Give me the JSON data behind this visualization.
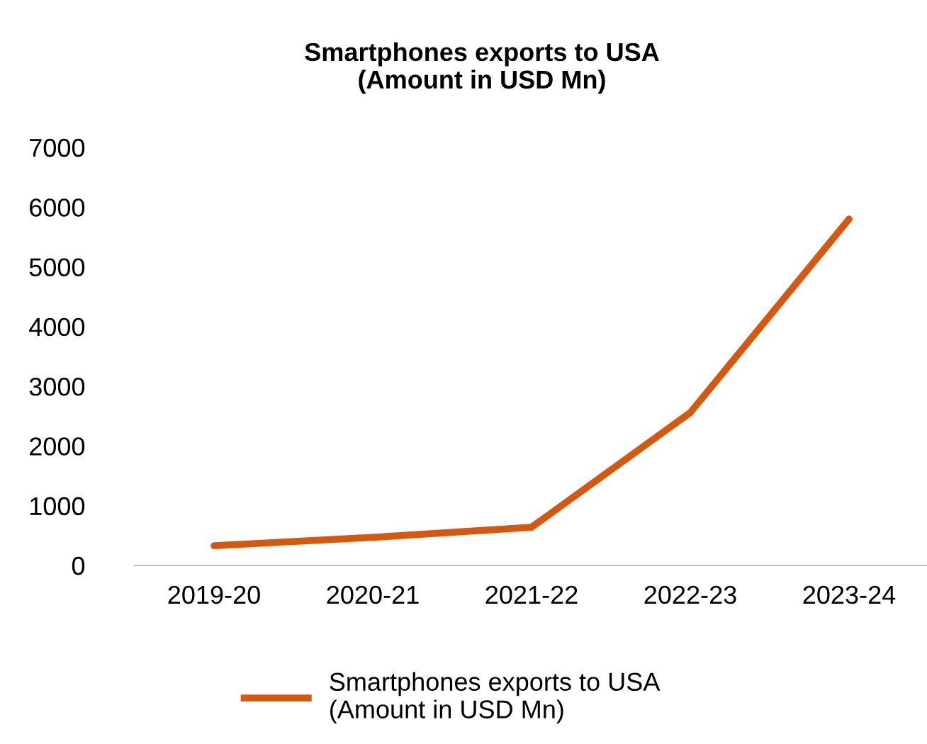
{
  "chart_data": {
    "type": "line",
    "title": "Smartphones exports to USA\n(Amount in USD Mn)",
    "categories": [
      "2019-20",
      "2020-21",
      "2021-22",
      "2022-23",
      "2023-24"
    ],
    "series": [
      {
        "name": "Smartphones exports to USA\n(Amount in USD Mn)",
        "color": "#d4580f",
        "values": [
          330,
          470,
          640,
          2560,
          5800
        ]
      }
    ],
    "ylim": [
      0,
      7000
    ],
    "yticks": [
      0,
      1000,
      2000,
      3000,
      4000,
      5000,
      6000,
      7000
    ],
    "grid": false,
    "legend": "bottom",
    "marker": "none",
    "line_style": "solid"
  }
}
